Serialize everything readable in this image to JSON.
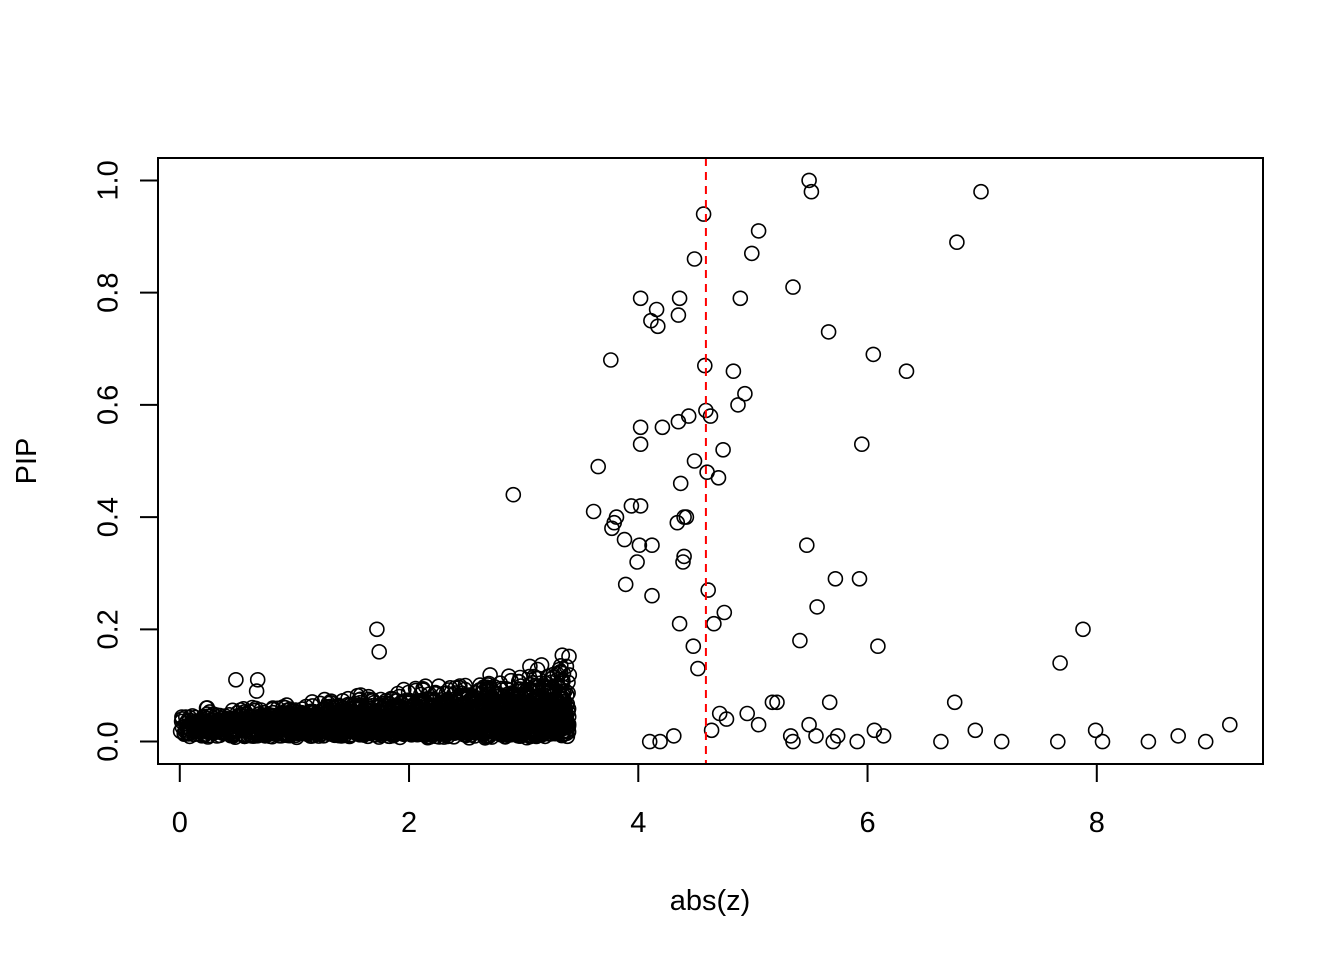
{
  "chart_data": {
    "type": "scatter",
    "title": "",
    "xlabel": "abs(z)",
    "ylabel": "PIP",
    "xlim": [
      -0.19,
      9.45
    ],
    "ylim": [
      -0.04,
      1.04
    ],
    "x_ticks": [
      0,
      2,
      4,
      6,
      8
    ],
    "x_tick_labels": [
      "0",
      "2",
      "4",
      "6",
      "8"
    ],
    "y_ticks": [
      0.0,
      0.2,
      0.4,
      0.6,
      0.8,
      1.0
    ],
    "y_tick_labels": [
      "0.0",
      "0.2",
      "0.4",
      "0.6",
      "0.8",
      "1.0"
    ],
    "grid": false,
    "marker": "open-circle",
    "marker_color": "#000000",
    "threshold_line": {
      "x": 4.59,
      "color": "#ff0000",
      "style": "dashed"
    },
    "dense_region": {
      "description_values_only": true,
      "x_range": [
        0.0,
        3.4
      ],
      "y_floor": 0.01,
      "y_growth_rate": 0.56
    },
    "series": [
      {
        "x": [
          5.49,
          5.51,
          6.99,
          4.57,
          5.05,
          6.78,
          4.99,
          4.49,
          5.35,
          4.02,
          4.36,
          4.89,
          4.16,
          4.11,
          4.35,
          4.17,
          5.66,
          3.76,
          6.05,
          4.58,
          4.83,
          6.34,
          4.93,
          4.87,
          4.59,
          4.63,
          4.44,
          4.35,
          4.21,
          4.02,
          4.02,
          5.95,
          4.74,
          4.49,
          3.65,
          4.6,
          4.7,
          4.37,
          2.91,
          4.02,
          3.94,
          4.42,
          4.34,
          4.4,
          3.81,
          3.79,
          3.61,
          3.77,
          3.88,
          4.12,
          5.47,
          4.01,
          4.4,
          4.39,
          3.99,
          5.72,
          5.93,
          4.61,
          4.12,
          4.75,
          5.56,
          3.89,
          4.36,
          4.66,
          7.88,
          1.72,
          5.41,
          6.09,
          1.74,
          7.68,
          4.48,
          4.52,
          0.49,
          0.68,
          0.67,
          0.24,
          6.76,
          5.67,
          5.21,
          5.17,
          4.71,
          4.95,
          4.77,
          5.49,
          7.99,
          6.94,
          9.16,
          4.64,
          5.05,
          6.06,
          6.14,
          8.71,
          5.33,
          5.55,
          5.74,
          5.35,
          6.64,
          5.7,
          5.91,
          7.17,
          7.66,
          8.05,
          8.45,
          8.95,
          4.1,
          4.19,
          4.31
        ],
        "y": [
          1.0,
          0.98,
          0.98,
          0.94,
          0.91,
          0.89,
          0.87,
          0.86,
          0.81,
          0.79,
          0.79,
          0.79,
          0.77,
          0.75,
          0.76,
          0.74,
          0.73,
          0.68,
          0.69,
          0.67,
          0.66,
          0.66,
          0.62,
          0.6,
          0.59,
          0.58,
          0.58,
          0.57,
          0.56,
          0.56,
          0.53,
          0.53,
          0.52,
          0.5,
          0.49,
          0.48,
          0.47,
          0.46,
          0.44,
          0.42,
          0.42,
          0.4,
          0.39,
          0.4,
          0.4,
          0.39,
          0.41,
          0.38,
          0.36,
          0.35,
          0.35,
          0.35,
          0.33,
          0.32,
          0.32,
          0.29,
          0.29,
          0.27,
          0.26,
          0.23,
          0.24,
          0.28,
          0.21,
          0.21,
          0.2,
          0.2,
          0.18,
          0.17,
          0.16,
          0.14,
          0.17,
          0.13,
          0.11,
          0.11,
          0.09,
          0.06,
          0.07,
          0.07,
          0.07,
          0.07,
          0.05,
          0.05,
          0.04,
          0.03,
          0.02,
          0.02,
          0.03,
          0.02,
          0.03,
          0.02,
          0.01,
          0.01,
          0.01,
          0.01,
          0.01,
          0.0,
          0.0,
          0.0,
          0.0,
          0.0,
          0.0,
          0.0,
          0.0,
          0.0,
          0.0,
          0.0,
          0.01
        ]
      }
    ]
  }
}
